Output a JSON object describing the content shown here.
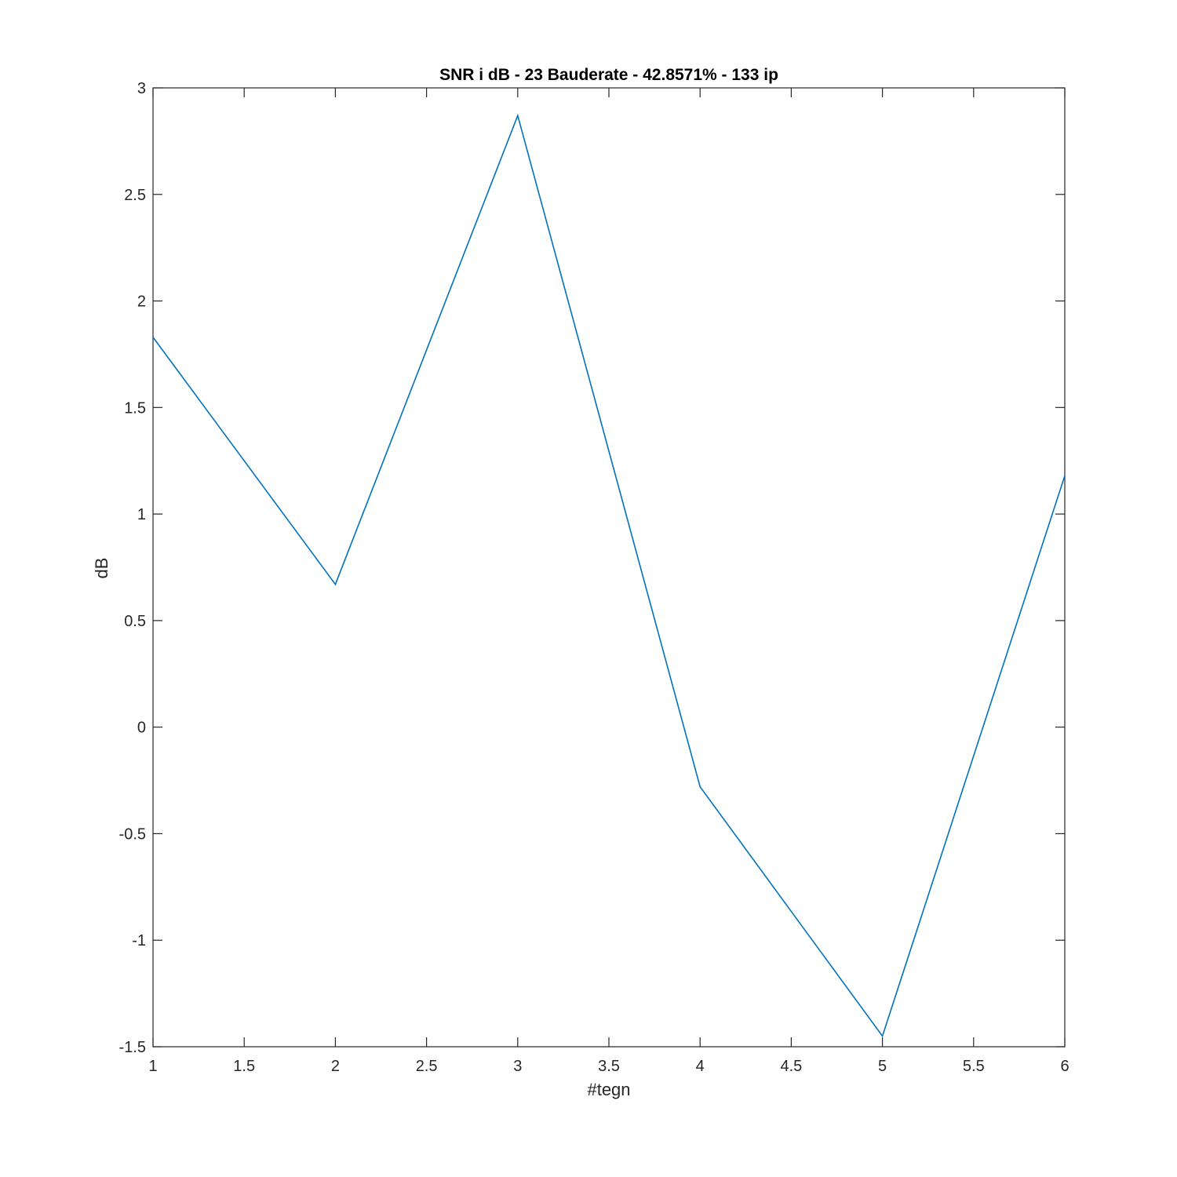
{
  "chart_data": {
    "type": "line",
    "title": "SNR i dB - 23 Bauderate - 42.8571% - 133 ip",
    "xlabel": "#tegn",
    "ylabel": "dB",
    "xlim": [
      1,
      6
    ],
    "ylim": [
      -1.5,
      3
    ],
    "x_ticks": [
      1,
      1.5,
      2,
      2.5,
      3,
      3.5,
      4,
      4.5,
      5,
      5.5,
      6
    ],
    "x_tick_labels": [
      "1",
      "1.5",
      "2",
      "2.5",
      "3",
      "3.5",
      "4",
      "4.5",
      "5",
      "5.5",
      "6"
    ],
    "y_ticks": [
      -1.5,
      -1,
      -0.5,
      0,
      0.5,
      1,
      1.5,
      2,
      2.5,
      3
    ],
    "y_tick_labels": [
      "-1.5",
      "-1",
      "-0.5",
      "0",
      "0.5",
      "1",
      "1.5",
      "2",
      "2.5",
      "3"
    ],
    "grid": false,
    "series": [
      {
        "x": [
          1,
          2,
          3,
          4,
          5,
          6
        ],
        "values": [
          1.83,
          0.67,
          2.87,
          -0.28,
          -1.45,
          1.18
        ],
        "color": "#0072BD"
      }
    ],
    "axis_color": "#262626"
  }
}
